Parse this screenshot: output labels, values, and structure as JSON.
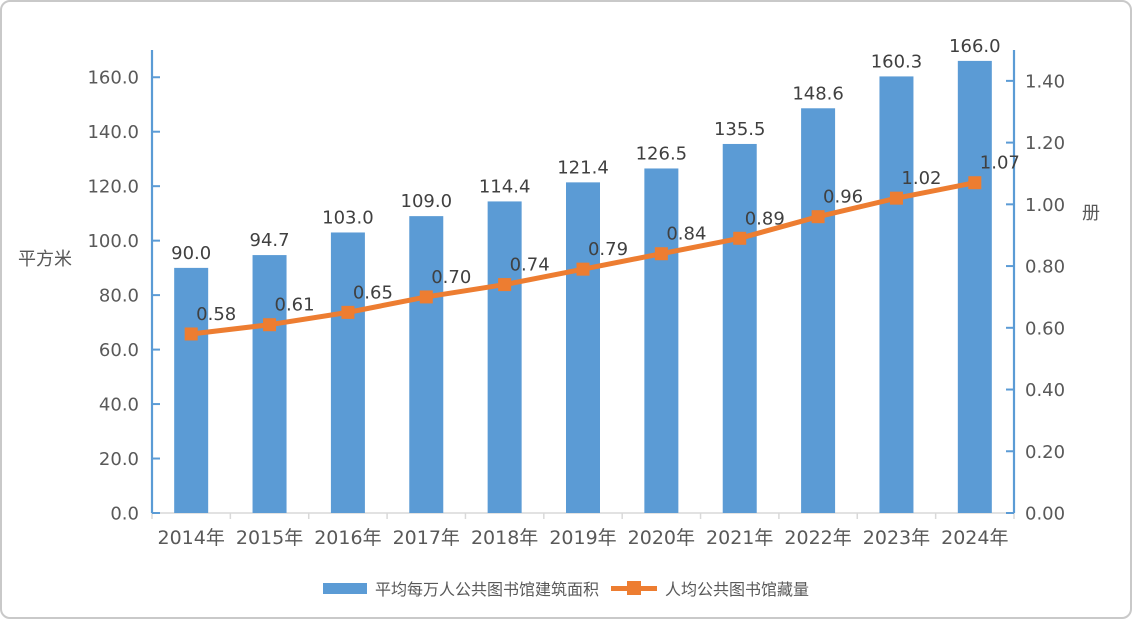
{
  "chart_data": {
    "type": "combo",
    "title": "",
    "categories": [
      "2014年",
      "2015年",
      "2016年",
      "2017年",
      "2018年",
      "2019年",
      "2020年",
      "2021年",
      "2022年",
      "2023年",
      "2024年"
    ],
    "series": [
      {
        "name": "平均每万人公共图书馆建筑面积",
        "type": "bar",
        "axis": "left",
        "color": "#5B9BD5",
        "values": [
          90.0,
          94.7,
          103.0,
          109.0,
          114.4,
          121.4,
          126.5,
          135.5,
          148.6,
          160.3,
          166.0
        ],
        "value_labels": [
          "90.0",
          "94.7",
          "103.0",
          "109.0",
          "114.4",
          "121.4",
          "126.5",
          "135.5",
          "148.6",
          "160.3",
          "166.0"
        ]
      },
      {
        "name": "人均公共图书馆藏量",
        "type": "line",
        "axis": "right",
        "color": "#ED7D31",
        "values": [
          0.58,
          0.61,
          0.65,
          0.7,
          0.74,
          0.79,
          0.84,
          0.89,
          0.96,
          1.02,
          1.07
        ],
        "value_labels": [
          "0.58",
          "0.61",
          "0.65",
          "0.70",
          "0.74",
          "0.79",
          "0.84",
          "0.89",
          "0.96",
          "1.02",
          "1.07"
        ]
      }
    ],
    "left_axis": {
      "title": "平方米",
      "min": 0,
      "max": 170,
      "tick_labels": [
        "0.0",
        "20.0",
        "40.0",
        "60.0",
        "80.0",
        "100.0",
        "120.0",
        "140.0",
        "160.0"
      ]
    },
    "right_axis": {
      "title": "册",
      "min": 0,
      "max": 1.5,
      "tick_labels": [
        "0.00",
        "0.20",
        "0.40",
        "0.60",
        "0.80",
        "1.00",
        "1.20",
        "1.40"
      ]
    },
    "legend_position": "bottom",
    "grid": false,
    "colors": {
      "bar": "#5B9BD5",
      "line": "#ED7D31",
      "y_axis": "#5B9BD5",
      "x_axis": "#D9D9D9",
      "tick_text": "#595959",
      "value_text": "#404040"
    }
  }
}
